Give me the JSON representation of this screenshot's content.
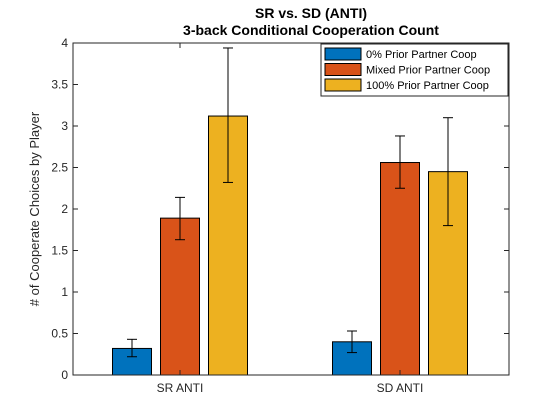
{
  "chart_data": {
    "type": "bar",
    "title": "SR vs. SD (ANTI)",
    "subtitle": "3-back Conditional Cooperation Count",
    "xlabel": "",
    "ylabel": "# of Cooperate Choices by Player",
    "categories": [
      "SR ANTI",
      "SD ANTI"
    ],
    "ylim": [
      0,
      4
    ],
    "yticks": [
      0,
      0.5,
      1,
      1.5,
      2,
      2.5,
      3,
      3.5,
      4
    ],
    "ytick_labels": [
      "0",
      "0.5",
      "1",
      "1.5",
      "2",
      "2.5",
      "3",
      "3.5",
      "4"
    ],
    "grid": false,
    "legend_position": "top-right",
    "series": [
      {
        "name": "0% Prior Partner Coop",
        "color": "#0072BD",
        "values": [
          0.32,
          0.4
        ],
        "err_low": [
          0.22,
          0.27
        ],
        "err_high": [
          0.43,
          0.53
        ]
      },
      {
        "name": "Mixed Prior Partner Coop",
        "color": "#D95319",
        "values": [
          1.89,
          2.56
        ],
        "err_low": [
          1.63,
          2.25
        ],
        "err_high": [
          2.14,
          2.88
        ]
      },
      {
        "name": "100% Prior Partner Coop",
        "color": "#EDB120",
        "values": [
          3.12,
          2.45
        ],
        "err_low": [
          2.32,
          1.8
        ],
        "err_high": [
          3.94,
          3.1
        ]
      }
    ]
  }
}
